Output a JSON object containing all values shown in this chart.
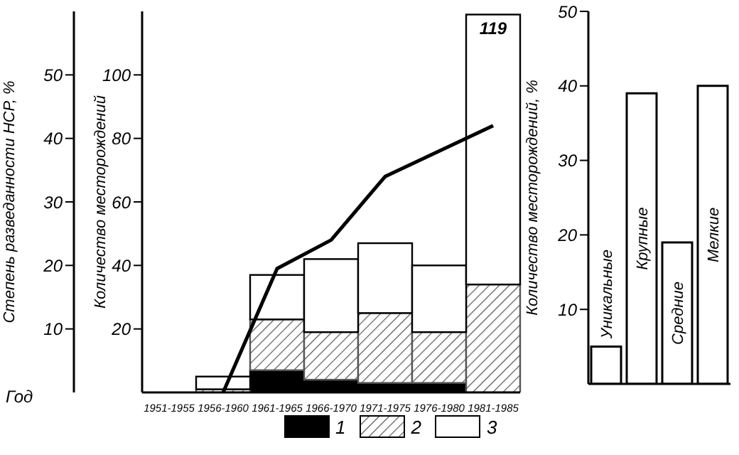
{
  "chart_data": [
    {
      "type": "bar",
      "stacked": true,
      "ylabel": "Количество месторождений",
      "y2label": "Степень разведанности НСР, %",
      "categories": [
        "1951-1955",
        "1956-1960",
        "1961-1965",
        "1966-1970",
        "1971-1975",
        "1976-1980",
        "1981-1985"
      ],
      "series": [
        {
          "name": "1",
          "color": "#000000",
          "values": [
            0,
            0,
            7,
            4,
            3,
            3,
            0
          ]
        },
        {
          "name": "2",
          "color": "#555555",
          "values": [
            0,
            1,
            16,
            15,
            22,
            16,
            34
          ]
        },
        {
          "name": "3",
          "color": "#ffffff",
          "values": [
            0,
            4,
            14,
            23,
            22,
            21,
            85
          ]
        },
        {
          "type": "line",
          "axis": "y2",
          "color": "#000000",
          "values": [
            null,
            0,
            19.5,
            24,
            34,
            38,
            42
          ]
        }
      ],
      "totals": [
        null,
        null,
        null,
        null,
        null,
        null,
        "119"
      ],
      "ylim": [
        0,
        120
      ],
      "yticks": [
        20,
        40,
        60,
        80,
        100
      ],
      "y2lim": [
        0,
        60
      ],
      "y2ticks": [
        10,
        20,
        30,
        40,
        50
      ],
      "legend": "bottom",
      "grid": false,
      "marker": "none",
      "line_style": "solid",
      "annotations": [
        "Год"
      ]
    },
    {
      "type": "bar",
      "ylabel": "Количество месторождений, %",
      "categories": [
        "Уникальные",
        "Крупные",
        "Средние",
        "Мелкие"
      ],
      "values": [
        5,
        39,
        19,
        40
      ],
      "color": "#ffffff",
      "ylim": [
        0,
        50
      ],
      "yticks": [
        10,
        20,
        30,
        40,
        50
      ],
      "grid": false
    }
  ]
}
